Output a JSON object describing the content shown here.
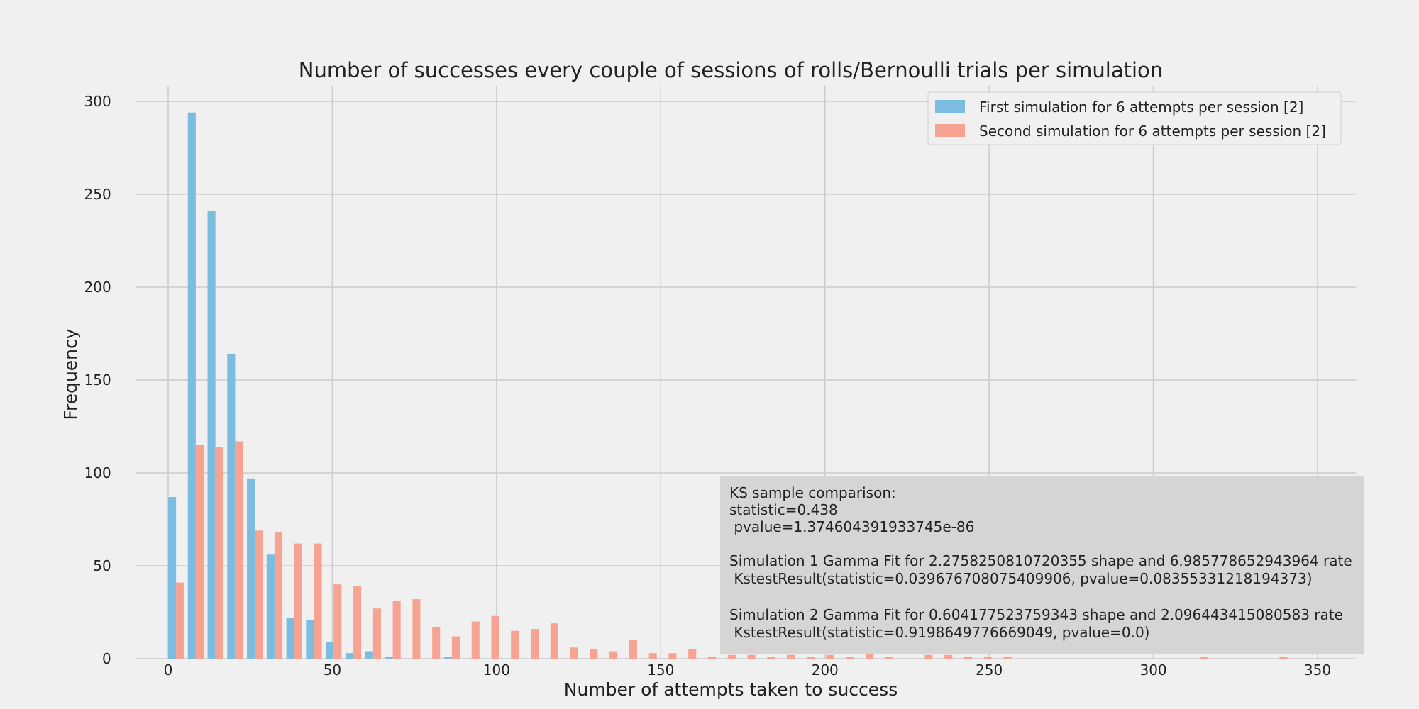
{
  "chart_data": {
    "type": "bar",
    "title": "Number of successes every couple of sessions of rolls/Bernoulli trials per simulation",
    "xlabel": "Number of attempts taken to success",
    "ylabel": "Frequency",
    "xlim": [
      -10,
      360
    ],
    "ylim": [
      0,
      308
    ],
    "xticks": [
      0,
      50,
      100,
      150,
      200,
      250,
      300,
      350
    ],
    "yticks": [
      0,
      50,
      100,
      150,
      200,
      250,
      300
    ],
    "grid": true,
    "legend_position": "top-right",
    "bin_width": 6,
    "bin_start": 0,
    "series": [
      {
        "name": "First simulation for 6 attempts per session [2]",
        "color": "#7abde1",
        "values": [
          87,
          294,
          241,
          164,
          97,
          56,
          22,
          21,
          9,
          3,
          4,
          1,
          0,
          0,
          1,
          0,
          0,
          0,
          0,
          0,
          0,
          0,
          0,
          0,
          0,
          0,
          0,
          0,
          0,
          0,
          0,
          0,
          0,
          0,
          0,
          0,
          0,
          0,
          0,
          0,
          0,
          0,
          0,
          0,
          0,
          0,
          0,
          0,
          0,
          0,
          0,
          0,
          0,
          0,
          0,
          0,
          0,
          0,
          0,
          0
        ]
      },
      {
        "name": "Second simulation for 6 attempts per session [2]",
        "color": "#f7a392",
        "values": [
          41,
          115,
          114,
          117,
          69,
          68,
          62,
          62,
          40,
          39,
          27,
          31,
          32,
          17,
          12,
          20,
          23,
          15,
          16,
          19,
          6,
          5,
          4,
          10,
          3,
          3,
          5,
          1,
          2,
          2,
          1,
          2,
          1,
          2,
          1,
          4,
          1,
          0,
          2,
          2,
          1,
          1,
          1,
          0,
          0,
          0,
          0,
          0,
          0,
          0,
          0,
          0,
          1,
          0,
          0,
          0,
          1,
          0,
          0,
          0
        ]
      }
    ],
    "annotation": {
      "lines": [
        "KS sample comparison:",
        "statistic=0.438",
        " pvalue=1.374604391933745e-86",
        "",
        "Simulation 1 Gamma Fit for 2.2758250810720355 shape and 6.985778652943964 rate",
        " KstestResult(statistic=0.039676708075409906, pvalue=0.08355331218194373)",
        "",
        "Simulation 2 Gamma Fit for 0.604177523759343 shape and 2.096443415080583 rate",
        " KstestResult(statistic=0.9198649776669049, pvalue=0.0)"
      ],
      "box_color": "#d5d5d5"
    }
  }
}
